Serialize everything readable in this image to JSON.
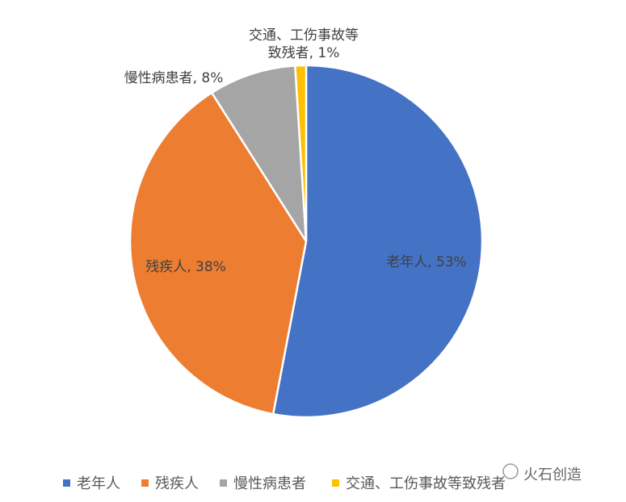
{
  "chart_data": {
    "type": "pie",
    "categories": [
      "老年人",
      "残疾人",
      "慢性病患者",
      "交通、工伤事故等致残者"
    ],
    "values": [
      53,
      38,
      8,
      1
    ],
    "value_labels": [
      "老年人, 53%",
      "残疾人, 38%",
      "慢性病患者, 8%",
      "交通、工伤事故等致残者, 1%"
    ],
    "colors": [
      "#4472c4",
      "#ed7d31",
      "#a5a5a5",
      "#ffc000"
    ],
    "legend": "bottom",
    "watermark": "火石创造"
  }
}
